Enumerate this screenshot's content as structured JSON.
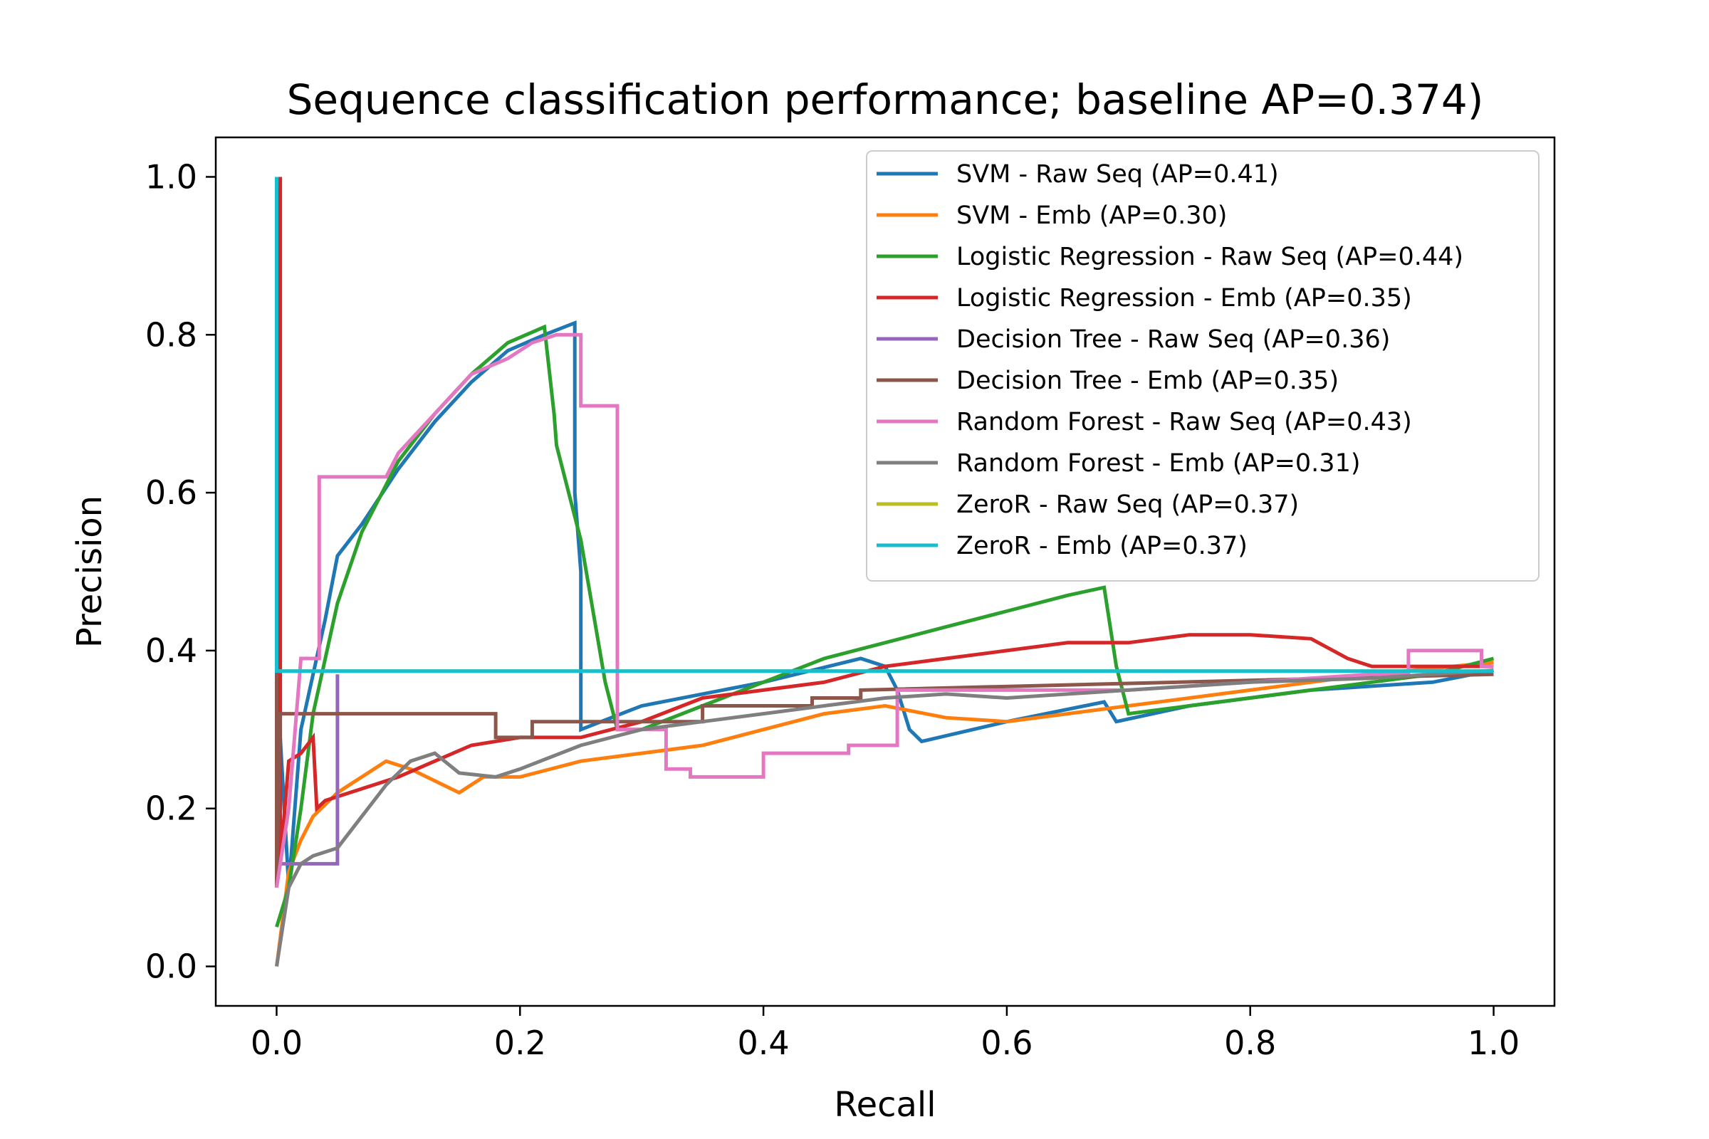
{
  "chart_data": {
    "type": "line",
    "title": "Sequence classification performance; baseline AP=0.374)",
    "xlabel": "Recall",
    "ylabel": "Precision",
    "xlim": [
      -0.05,
      1.05
    ],
    "ylim": [
      -0.05,
      1.05
    ],
    "xticks": [
      0.0,
      0.2,
      0.4,
      0.6,
      0.8,
      1.0
    ],
    "yticks": [
      0.0,
      0.2,
      0.4,
      0.6,
      0.8,
      1.0
    ],
    "xtick_labels": [
      "0.0",
      "0.2",
      "0.4",
      "0.6",
      "0.8",
      "1.0"
    ],
    "ytick_labels": [
      "0.0",
      "0.2",
      "0.4",
      "0.6",
      "0.8",
      "1.0"
    ],
    "grid": false,
    "legend_position": "top-right",
    "series": [
      {
        "name": "SVM - Raw Seq (AP=0.41)",
        "color": "#1f77b4",
        "x": [
          0.0,
          0.0,
          0.01,
          0.02,
          0.04,
          0.05,
          0.055,
          0.07,
          0.1,
          0.13,
          0.16,
          0.19,
          0.22,
          0.245,
          0.245,
          0.25,
          0.25,
          0.3,
          0.4,
          0.48,
          0.5,
          0.51,
          0.52,
          0.53,
          0.6,
          0.68,
          0.69,
          0.75,
          0.85,
          0.95,
          1.0
        ],
        "y": [
          1.0,
          0.37,
          0.1,
          0.3,
          0.44,
          0.52,
          0.53,
          0.56,
          0.63,
          0.69,
          0.74,
          0.78,
          0.8,
          0.815,
          0.6,
          0.5,
          0.3,
          0.33,
          0.36,
          0.39,
          0.38,
          0.35,
          0.3,
          0.285,
          0.31,
          0.335,
          0.31,
          0.33,
          0.35,
          0.36,
          0.375
        ]
      },
      {
        "name": "SVM - Emb (AP=0.30)",
        "color": "#ff7f0e",
        "x": [
          0.0,
          0.01,
          0.02,
          0.03,
          0.05,
          0.07,
          0.09,
          0.11,
          0.13,
          0.15,
          0.17,
          0.2,
          0.25,
          0.3,
          0.35,
          0.4,
          0.45,
          0.5,
          0.55,
          0.6,
          0.65,
          0.7,
          0.75,
          0.8,
          0.9,
          1.0
        ],
        "y": [
          0.0,
          0.12,
          0.16,
          0.19,
          0.22,
          0.24,
          0.26,
          0.25,
          0.235,
          0.22,
          0.24,
          0.24,
          0.26,
          0.27,
          0.28,
          0.3,
          0.32,
          0.33,
          0.315,
          0.31,
          0.32,
          0.33,
          0.34,
          0.35,
          0.37,
          0.385
        ]
      },
      {
        "name": "Logistic Regression - Raw Seq (AP=0.44)",
        "color": "#2ca02c",
        "x": [
          0.0,
          0.01,
          0.02,
          0.03,
          0.05,
          0.07,
          0.1,
          0.13,
          0.16,
          0.19,
          0.22,
          0.228,
          0.23,
          0.24,
          0.25,
          0.26,
          0.27,
          0.28,
          0.3,
          0.35,
          0.4,
          0.45,
          0.5,
          0.55,
          0.6,
          0.65,
          0.68,
          0.69,
          0.7,
          0.75,
          0.85,
          0.95,
          1.0
        ],
        "y": [
          0.05,
          0.1,
          0.2,
          0.32,
          0.46,
          0.55,
          0.64,
          0.7,
          0.75,
          0.79,
          0.81,
          0.7,
          0.66,
          0.6,
          0.54,
          0.45,
          0.36,
          0.3,
          0.3,
          0.33,
          0.36,
          0.39,
          0.41,
          0.43,
          0.45,
          0.47,
          0.48,
          0.38,
          0.32,
          0.33,
          0.35,
          0.37,
          0.39
        ]
      },
      {
        "name": "Logistic Regression - Emb (AP=0.35)",
        "color": "#d62728",
        "x": [
          0.0,
          0.003,
          0.003,
          0.01,
          0.02,
          0.03,
          0.033,
          0.04,
          0.06,
          0.08,
          0.1,
          0.13,
          0.16,
          0.2,
          0.25,
          0.3,
          0.35,
          0.4,
          0.45,
          0.5,
          0.55,
          0.6,
          0.65,
          0.7,
          0.75,
          0.8,
          0.85,
          0.88,
          0.9,
          1.0
        ],
        "y": [
          0.1,
          1.0,
          0.13,
          0.26,
          0.27,
          0.29,
          0.2,
          0.21,
          0.22,
          0.23,
          0.24,
          0.26,
          0.28,
          0.29,
          0.29,
          0.31,
          0.34,
          0.35,
          0.36,
          0.38,
          0.39,
          0.4,
          0.41,
          0.41,
          0.42,
          0.42,
          0.415,
          0.39,
          0.38,
          0.38
        ]
      },
      {
        "name": "Decision Tree - Raw Seq (AP=0.36)",
        "color": "#9467bd",
        "x": [
          0.0,
          0.0,
          0.01,
          0.05,
          0.05,
          0.05
        ],
        "y": [
          0.37,
          0.13,
          0.13,
          0.13,
          0.37,
          0.37
        ]
      },
      {
        "name": "Decision Tree - Emb (AP=0.35)",
        "color": "#8c564b",
        "x": [
          0.0,
          0.0,
          0.003,
          0.18,
          0.18,
          0.21,
          0.21,
          0.35,
          0.35,
          0.44,
          0.44,
          0.48,
          0.48,
          1.0
        ],
        "y": [
          0.37,
          0.1,
          0.32,
          0.32,
          0.29,
          0.29,
          0.31,
          0.31,
          0.33,
          0.33,
          0.34,
          0.34,
          0.35,
          0.37
        ]
      },
      {
        "name": "Random Forest - Raw Seq (AP=0.43)",
        "color": "#e377c2",
        "x": [
          0.0,
          0.01,
          0.02,
          0.03,
          0.035,
          0.035,
          0.09,
          0.1,
          0.13,
          0.16,
          0.19,
          0.21,
          0.23,
          0.25,
          0.25,
          0.28,
          0.28,
          0.285,
          0.32,
          0.32,
          0.34,
          0.34,
          0.4,
          0.4,
          0.47,
          0.47,
          0.51,
          0.51,
          0.6,
          0.7,
          0.8,
          0.9,
          0.93,
          0.93,
          0.99,
          0.99,
          1.0
        ],
        "y": [
          0.1,
          0.2,
          0.39,
          0.39,
          0.39,
          0.62,
          0.62,
          0.65,
          0.7,
          0.75,
          0.77,
          0.79,
          0.8,
          0.8,
          0.71,
          0.71,
          0.3,
          0.3,
          0.3,
          0.25,
          0.25,
          0.24,
          0.24,
          0.27,
          0.27,
          0.28,
          0.28,
          0.35,
          0.35,
          0.35,
          0.36,
          0.37,
          0.37,
          0.4,
          0.4,
          0.38,
          0.38
        ]
      },
      {
        "name": "Random Forest - Emb (AP=0.31)",
        "color": "#7f7f7f",
        "x": [
          0.0,
          0.005,
          0.01,
          0.02,
          0.03,
          0.05,
          0.07,
          0.09,
          0.11,
          0.13,
          0.15,
          0.18,
          0.2,
          0.25,
          0.3,
          0.35,
          0.4,
          0.45,
          0.5,
          0.55,
          0.6,
          0.7,
          0.8,
          0.9,
          1.0
        ],
        "y": [
          0.0,
          0.05,
          0.1,
          0.13,
          0.14,
          0.15,
          0.19,
          0.23,
          0.26,
          0.27,
          0.245,
          0.24,
          0.25,
          0.28,
          0.3,
          0.31,
          0.32,
          0.33,
          0.34,
          0.345,
          0.34,
          0.35,
          0.36,
          0.365,
          0.375
        ]
      },
      {
        "name": "ZeroR - Raw Seq (AP=0.37)",
        "color": "#bcbd22",
        "x": [
          0.0,
          0.0,
          1.0
        ],
        "y": [
          1.0,
          0.374,
          0.374
        ]
      },
      {
        "name": "ZeroR - Emb (AP=0.37)",
        "color": "#17becf",
        "x": [
          0.0,
          0.0,
          1.0
        ],
        "y": [
          1.0,
          0.374,
          0.374
        ]
      }
    ]
  }
}
